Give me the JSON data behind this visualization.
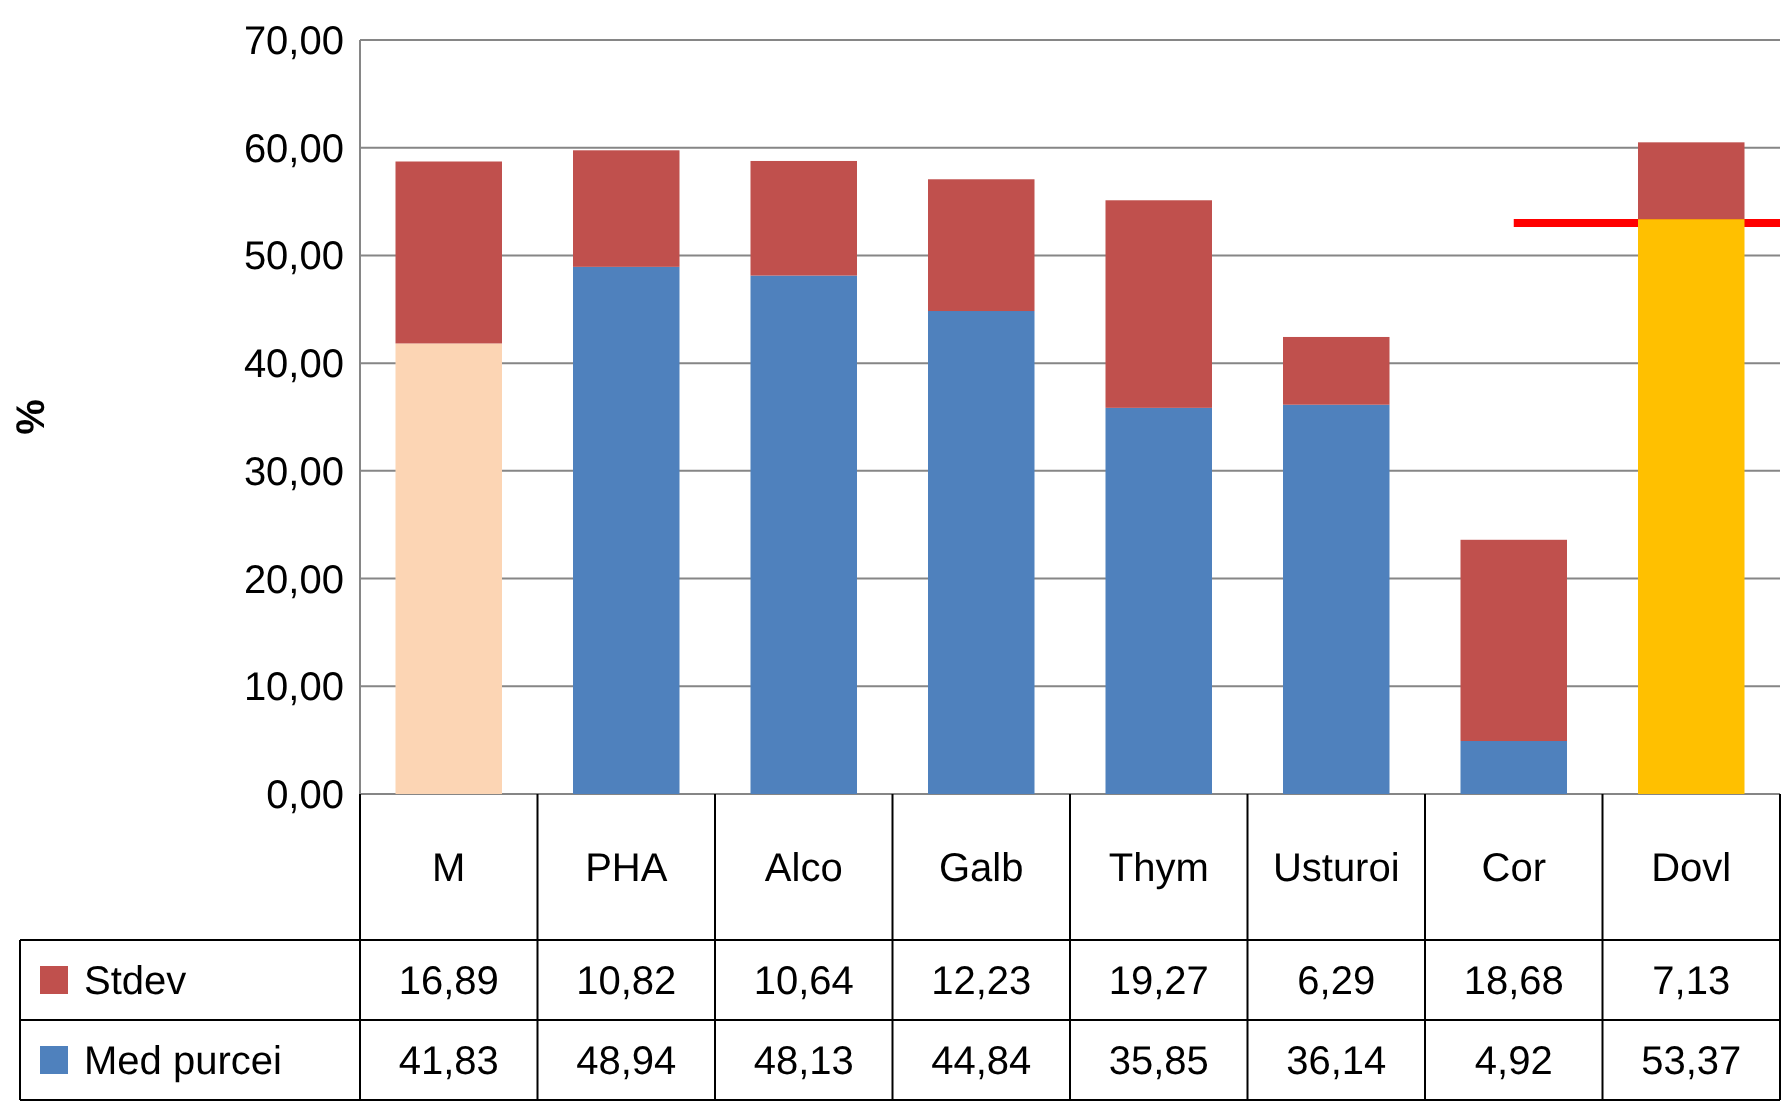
{
  "chart_data": {
    "type": "bar",
    "stacked": true,
    "ylabel": "%",
    "categories": [
      "M",
      "PHA",
      "Alco",
      "Galb",
      "Thym",
      "Usturoi",
      "Cor",
      "Dovl"
    ],
    "series": [
      {
        "name": "Med purcei",
        "color": "#4f81bd",
        "colors": [
          "#fcd5b4",
          "#4f81bd",
          "#4f81bd",
          "#4f81bd",
          "#4f81bd",
          "#4f81bd",
          "#4f81bd",
          "#ffc000"
        ],
        "values": [
          41.83,
          48.94,
          48.13,
          44.84,
          35.85,
          36.14,
          4.92,
          53.37
        ],
        "value_labels": [
          "41,83",
          "48,94",
          "48,13",
          "44,84",
          "35,85",
          "36,14",
          "4,92",
          "53,37"
        ]
      },
      {
        "name": "Stdev",
        "color": "#c0504d",
        "values": [
          16.89,
          10.82,
          10.64,
          12.23,
          19.27,
          6.29,
          18.68,
          7.13
        ],
        "value_labels": [
          "16,89",
          "10,82",
          "10,64",
          "12,23",
          "19,27",
          "6,29",
          "18,68",
          "7,13"
        ]
      }
    ],
    "ylim": [
      0,
      70
    ],
    "yticks": [
      {
        "value": 0,
        "label": "0,00"
      },
      {
        "value": 10,
        "label": "10,00"
      },
      {
        "value": 20,
        "label": "20,00"
      },
      {
        "value": 30,
        "label": "30,00"
      },
      {
        "value": 40,
        "label": "40,00"
      },
      {
        "value": 50,
        "label": "50,00"
      },
      {
        "value": 60,
        "label": "60,00"
      },
      {
        "value": 70,
        "label": "70,00"
      }
    ],
    "grid": "y",
    "legend": "bottom",
    "ref_lines": [
      {
        "axis": "y",
        "value": 53,
        "color": "#ff0000"
      }
    ]
  }
}
